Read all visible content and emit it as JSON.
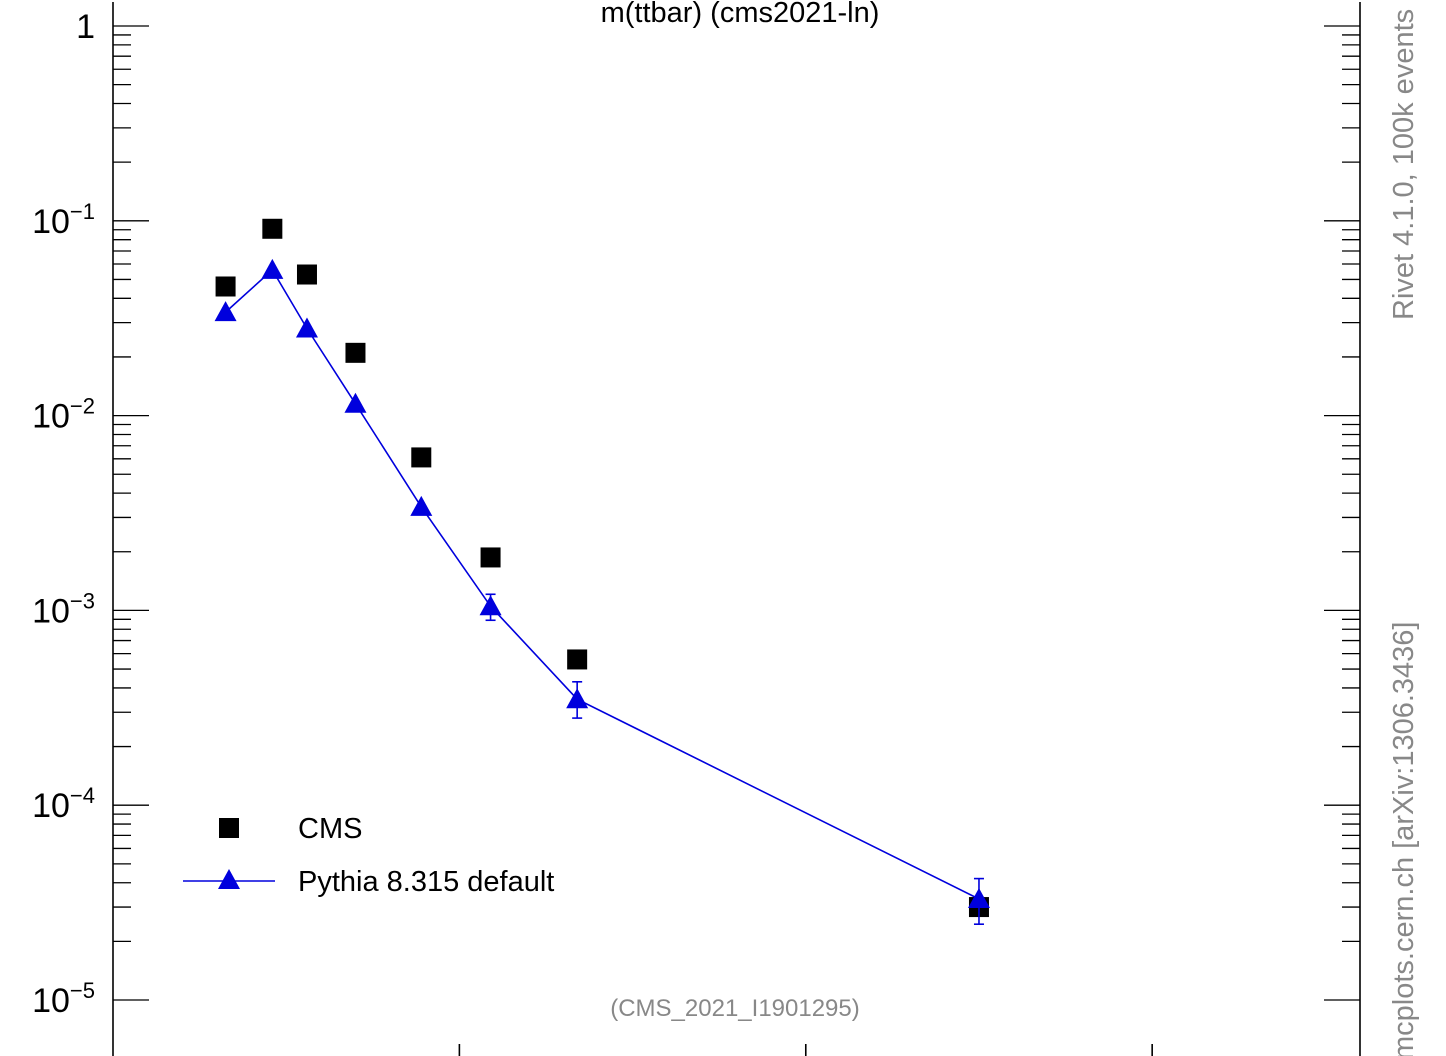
{
  "colors": {
    "data_series": "#000000",
    "mc_series": "#0000dd",
    "watermark": "#888888"
  },
  "chart_data": {
    "type": "scatter",
    "title": "m(ttbar) (cms2021-ln)",
    "analysis_label": "(CMS_2021_I1901295)",
    "side_label_top": "Rivet 4.1.0,  100k events",
    "side_label_bottom": "mcplots.cern.ch [arXiv:1306.3436]",
    "y_scale": "log",
    "ylim": [
      1e-05,
      1
    ],
    "xlim": [
      0,
      3600
    ],
    "y_tick_labels": [
      {
        "value": 1,
        "base": "1",
        "exp": ""
      },
      {
        "value": 0.1,
        "base": "10",
        "exp": "−1"
      },
      {
        "value": 0.01,
        "base": "10",
        "exp": "−2"
      },
      {
        "value": 0.001,
        "base": "10",
        "exp": "−3"
      },
      {
        "value": 0.0001,
        "base": "10",
        "exp": "−4"
      },
      {
        "value": 1e-05,
        "base": "10",
        "exp": "−5"
      }
    ],
    "x_major_ticks": [
      1000,
      2000,
      3000
    ],
    "legend_position": "bottom-left",
    "series": [
      {
        "name": "CMS",
        "marker": "square",
        "x": [
          325,
          460,
          560,
          700,
          890,
          1090,
          1340,
          2500
        ],
        "y": [
          0.046,
          0.091,
          0.053,
          0.021,
          0.0061,
          0.00187,
          0.00056,
          3e-05
        ]
      },
      {
        "name": "Pythia 8.315 default",
        "marker": "triangle",
        "line": true,
        "x": [
          325,
          460,
          560,
          700,
          890,
          1090,
          1340,
          2500
        ],
        "y": [
          0.034,
          0.056,
          0.028,
          0.0115,
          0.0034,
          0.00105,
          0.00035,
          3.3e-05
        ],
        "err_low": [
          0,
          0,
          0,
          0,
          0,
          0.00016,
          7e-05,
          8.5e-06
        ],
        "err_high": [
          0,
          0,
          0,
          0,
          0,
          0.00016,
          8e-05,
          9e-06
        ]
      }
    ]
  }
}
